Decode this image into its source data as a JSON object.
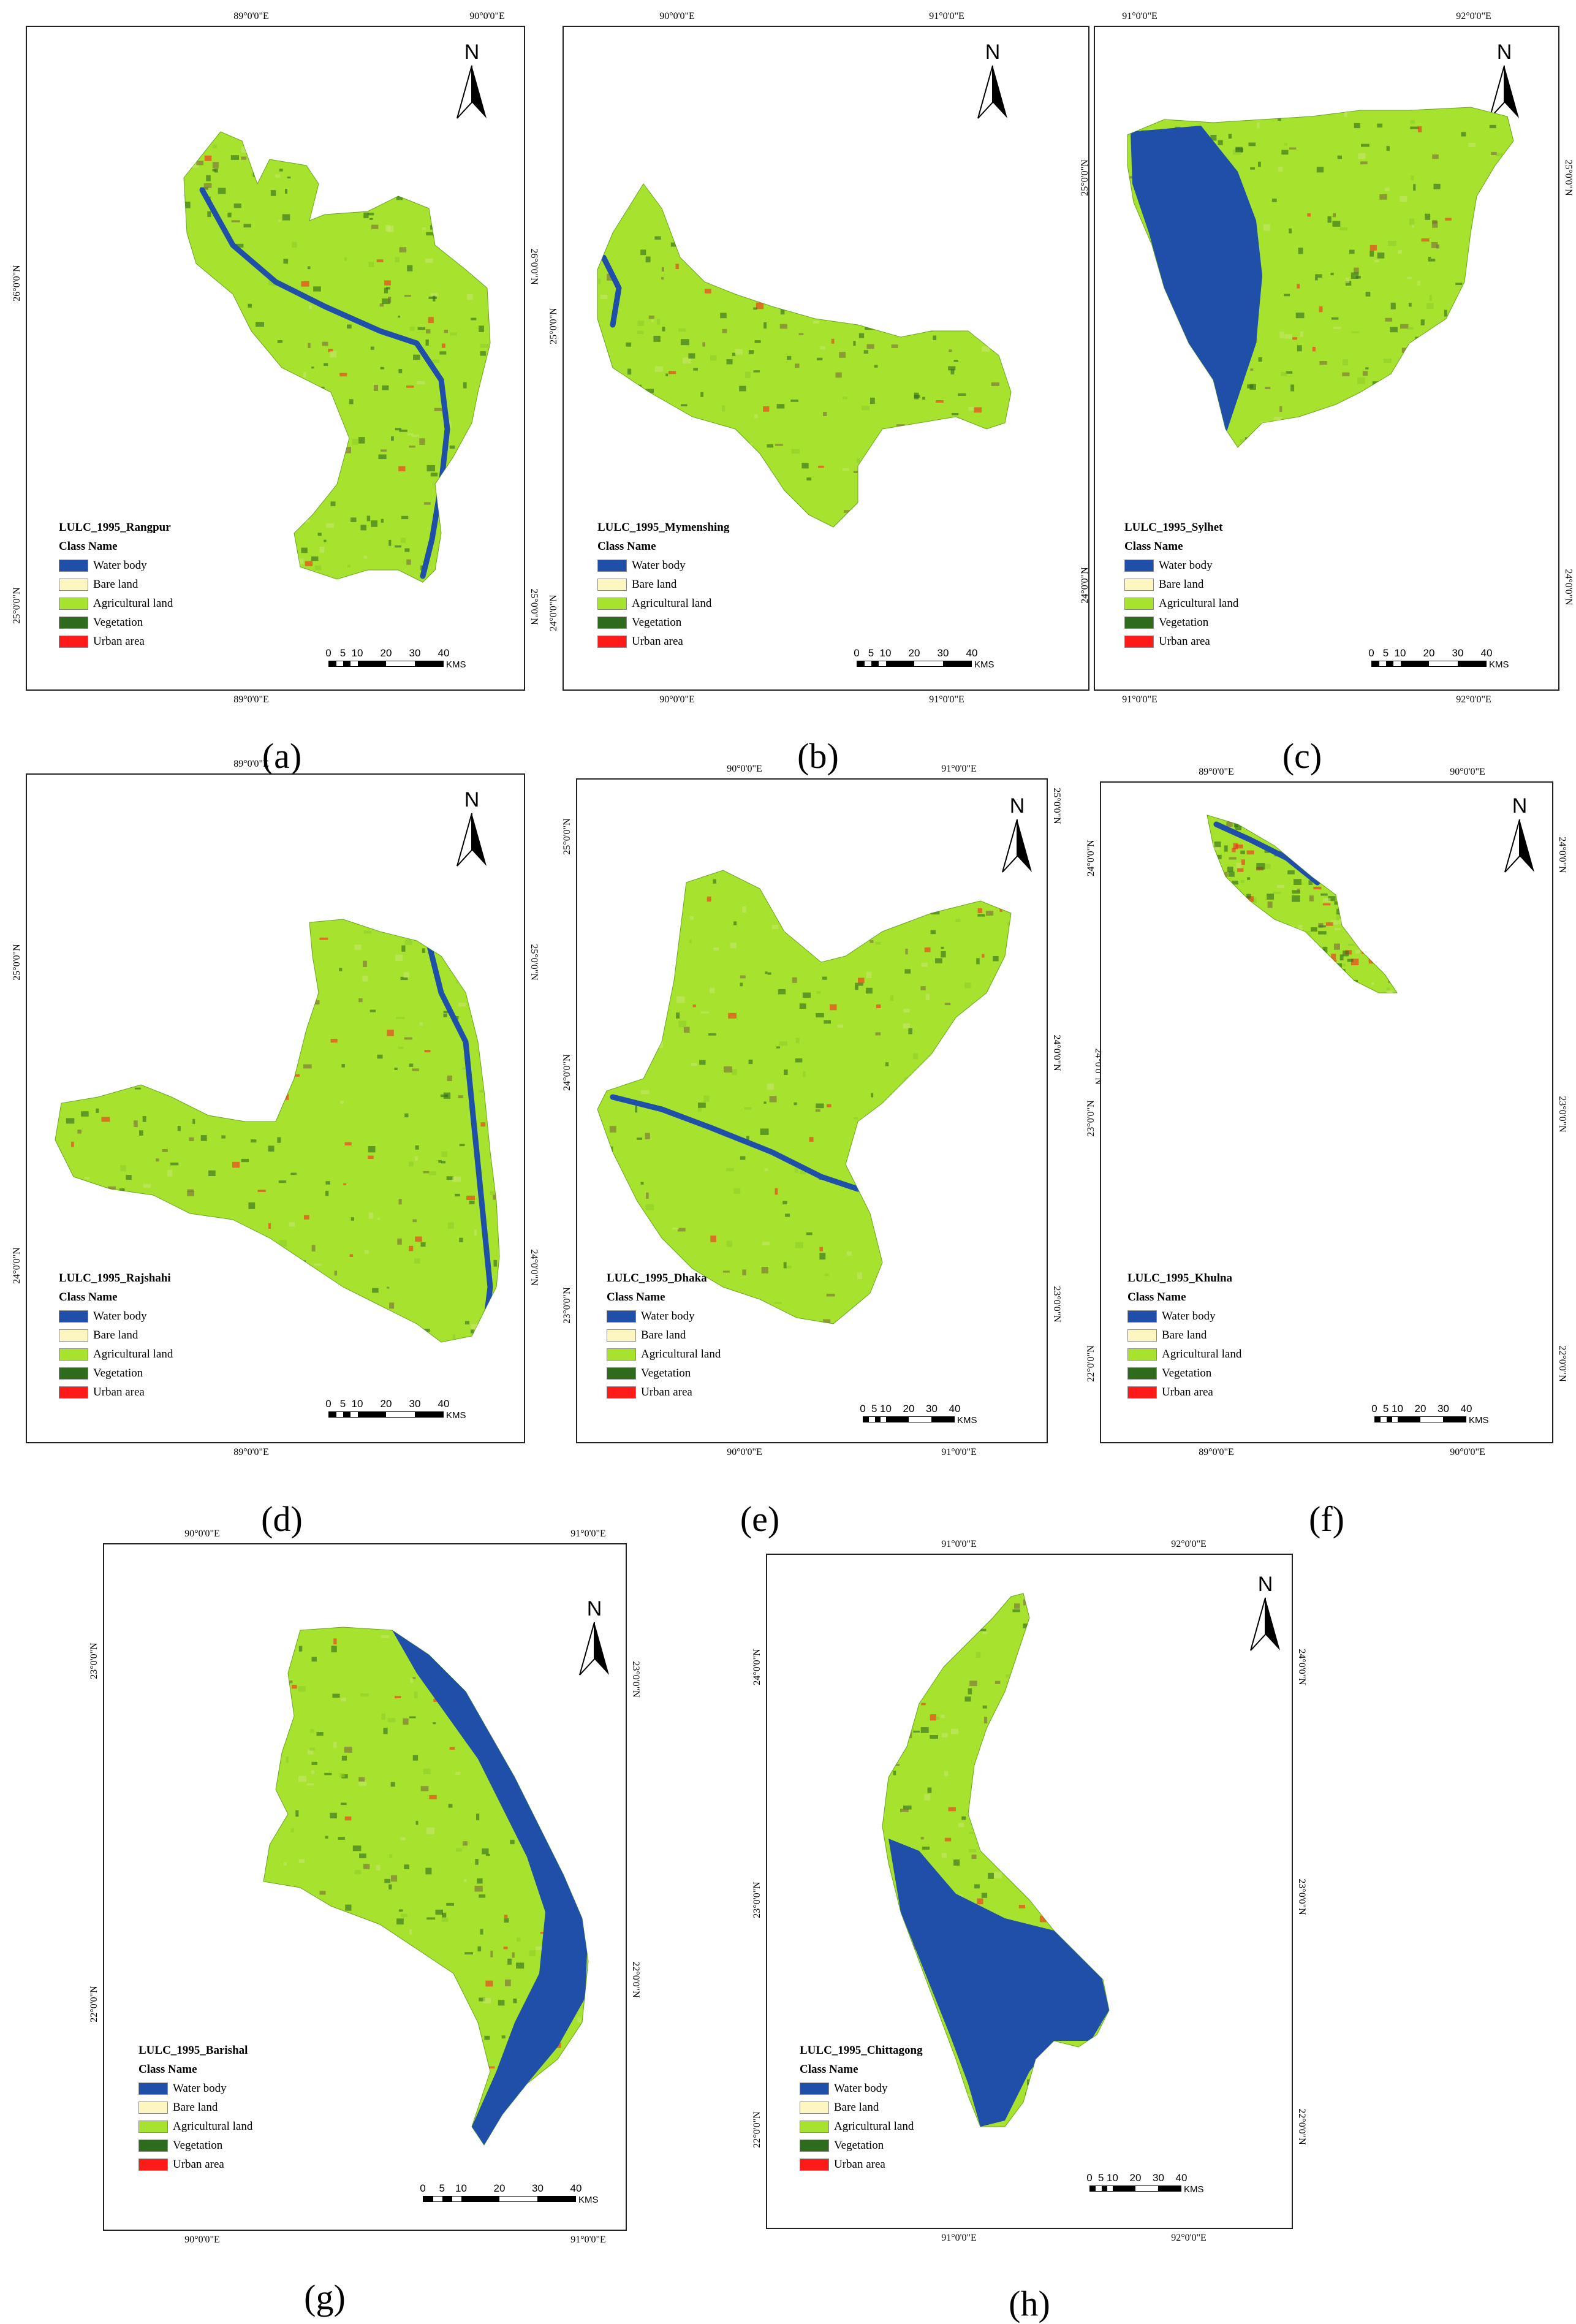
{
  "legend_class_header": "Class Name",
  "classes": [
    {
      "label": "Water body",
      "color": "#1f4fa8"
    },
    {
      "label": "Bare land",
      "color": "#fdf6c0"
    },
    {
      "label": "Agricultural land",
      "color": "#a6e22e"
    },
    {
      "label": "Vegetation",
      "color": "#2e6b1c"
    },
    {
      "label": "Urban area",
      "color": "#ff1a1a"
    }
  ],
  "scale": {
    "labels": [
      "0",
      "5",
      "10",
      "20",
      "30",
      "40"
    ],
    "unit": "KMS"
  },
  "north_label": "N",
  "panels": [
    {
      "caption": "(a)",
      "title": "LULC_1995_Rangpur",
      "top_ticks": [
        "89°0'0\"E",
        "90°0'0\"E"
      ],
      "bottom_ticks": [
        "89°0'0\"E"
      ],
      "left_ticks": [
        "26°0'0\"N",
        "25°0'0\"N"
      ],
      "right_ticks": [
        "26°0'0\"N",
        "25°0'0\"N"
      ]
    },
    {
      "caption": "(b)",
      "title": "LULC_1995_Mymenshing",
      "top_ticks": [
        "90°0'0\"E",
        "91°0'0\"E"
      ],
      "bottom_ticks": [
        "90°0'0\"E",
        "91°0'0\"E"
      ],
      "left_ticks": [
        "25°0'0\"N",
        "24°0'0\"N"
      ],
      "right_ticks": [
        "25°0'0\"N",
        "24°0'0\"N"
      ]
    },
    {
      "caption": "(c)",
      "title": "LULC_1995_Sylhet",
      "top_ticks": [
        "91°0'0\"E",
        "92°0'0\"E"
      ],
      "bottom_ticks": [
        "91°0'0\"E",
        "92°0'0\"E"
      ],
      "left_ticks": [
        "25°0'0\"N",
        "24°0'0\"N"
      ],
      "right_ticks": [
        "25°0'0\"N",
        "24°0'0\"N"
      ]
    },
    {
      "caption": "(d)",
      "title": "LULC_1995_Rajshahi",
      "top_ticks": [
        "89°0'0\"E"
      ],
      "bottom_ticks": [
        "89°0'0\"E"
      ],
      "left_ticks": [
        "25°0'0\"N",
        "24°0'0\"N"
      ],
      "right_ticks": [
        "25°0'0\"N",
        "24°0'0\"N"
      ]
    },
    {
      "caption": "(e)",
      "title": "LULC_1995_Dhaka",
      "top_ticks": [
        "90°0'0\"E",
        "91°0'0\"E"
      ],
      "bottom_ticks": [
        "90°0'0\"E",
        "91°0'0\"E"
      ],
      "left_ticks": [
        "25°0'0\"N",
        "24°0'0\"N",
        "23°0'0\"N"
      ],
      "right_ticks": [
        "25°0'0\"N",
        "24°0'0\"N",
        "23°0'0\"N"
      ]
    },
    {
      "caption": "(f)",
      "title": "LULC_1995_Khulna",
      "top_ticks": [
        "89°0'0\"E",
        "90°0'0\"E"
      ],
      "bottom_ticks": [
        "89°0'0\"E",
        "90°0'0\"E"
      ],
      "left_ticks": [
        "24°0'0\"N",
        "23°0'0\"N",
        "22°0'0\"N"
      ],
      "right_ticks": [
        "24°0'0\"N",
        "23°0'0\"N",
        "22°0'0\"N"
      ]
    },
    {
      "caption": "(g)",
      "title": "LULC_1995_Barishal",
      "top_ticks": [
        "90°0'0\"E",
        "91°0'0\"E"
      ],
      "bottom_ticks": [
        "90°0'0\"E",
        "91°0'0\"E"
      ],
      "left_ticks": [
        "23°0'0\"N",
        "22°0'0\"N"
      ],
      "right_ticks": [
        "23°0'0\"N",
        "22°0'0\"N"
      ]
    },
    {
      "caption": "(h)",
      "title": "LULC_1995_Chittagong",
      "top_ticks": [
        "91°0'0\"E",
        "92°0'0\"E"
      ],
      "bottom_ticks": [
        "91°0'0\"E",
        "92°0'0\"E"
      ],
      "left_ticks": [
        "24°0'0\"N",
        "23°0'0\"N",
        "22°0'0\"N"
      ],
      "right_ticks": [
        "24°0'0\"N",
        "23°0'0\"N",
        "22°0'0\"N"
      ]
    }
  ]
}
